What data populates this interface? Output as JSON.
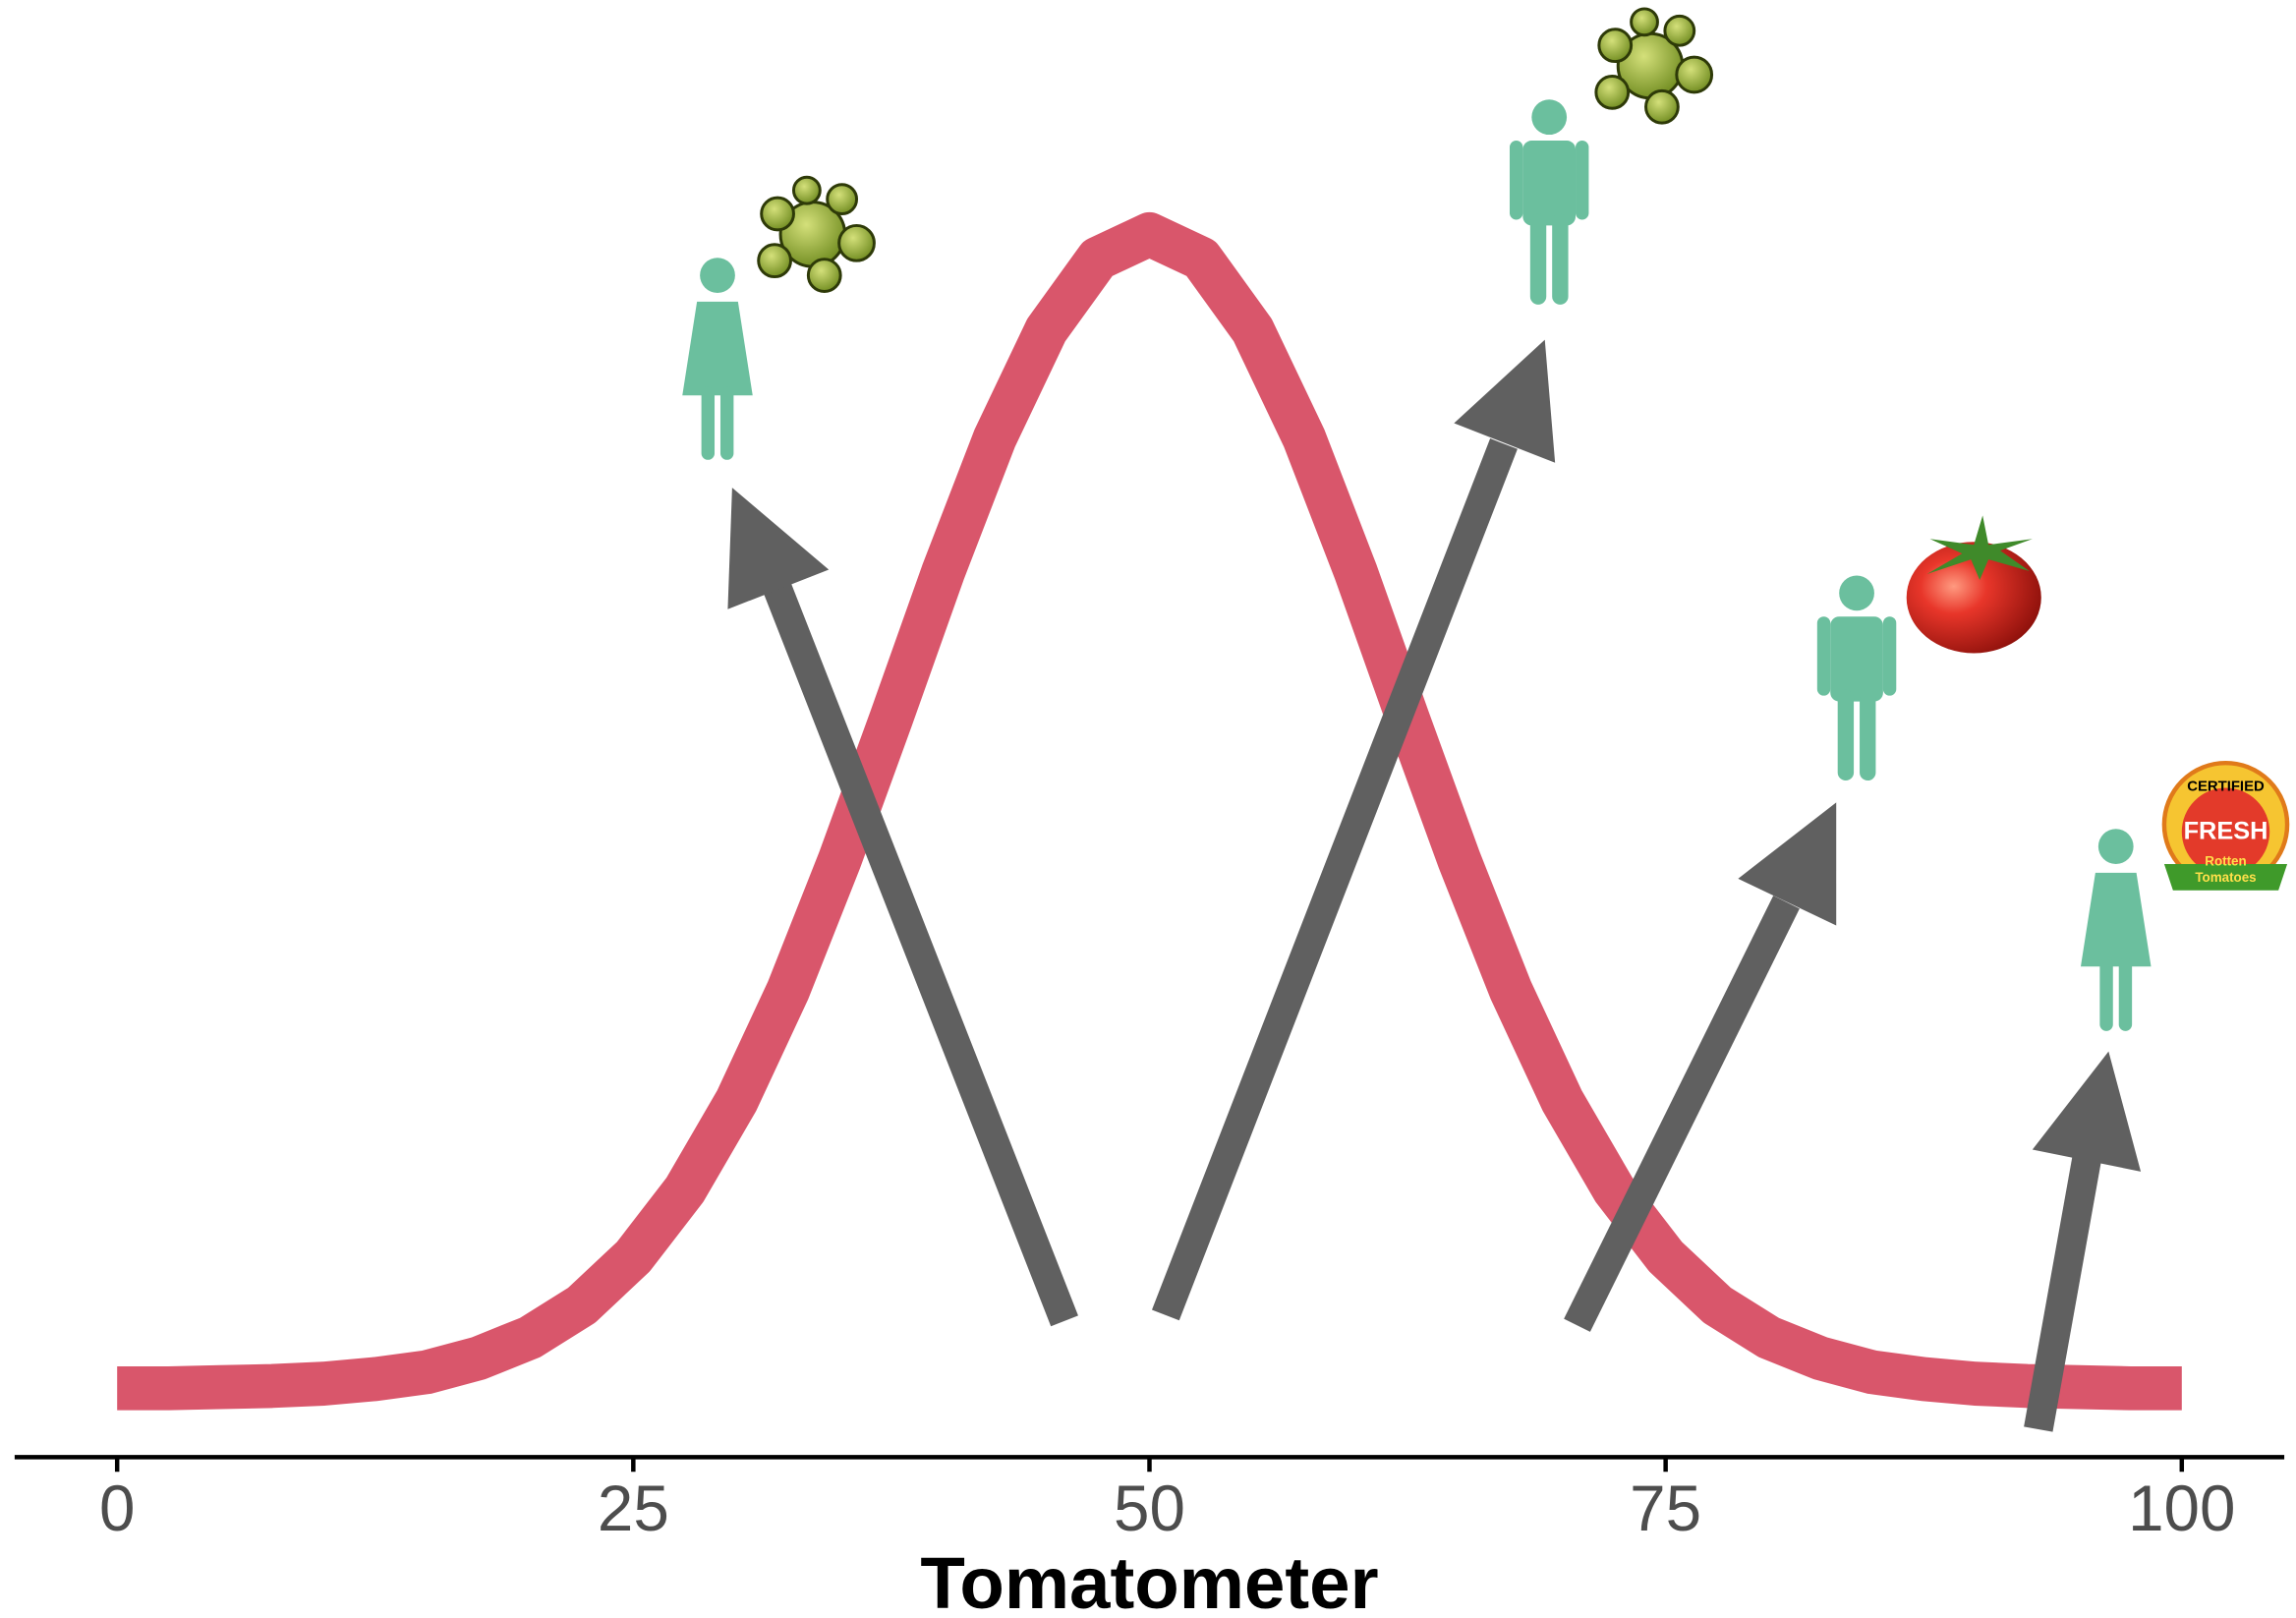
{
  "chart_data": {
    "type": "line",
    "xlabel": "Tomatometer",
    "x": [
      0,
      2.5,
      5,
      7.5,
      10,
      12.5,
      15,
      17.5,
      20,
      22.5,
      25,
      27.5,
      30,
      32.5,
      35,
      37.5,
      40,
      42.5,
      45,
      47.5,
      50,
      52.5,
      55,
      57.5,
      60,
      62.5,
      65,
      67.5,
      70,
      72.5,
      75,
      77.5,
      80,
      82.5,
      85,
      87.5,
      90,
      92.5,
      95,
      97.5,
      100
    ],
    "values": [
      0,
      0,
      0.001,
      0.002,
      0.004,
      0.008,
      0.014,
      0.026,
      0.044,
      0.072,
      0.114,
      0.172,
      0.249,
      0.345,
      0.458,
      0.581,
      0.707,
      0.823,
      0.917,
      0.979,
      1,
      0.979,
      0.917,
      0.823,
      0.707,
      0.581,
      0.458,
      0.345,
      0.249,
      0.172,
      0.114,
      0.072,
      0.044,
      0.026,
      0.014,
      0.008,
      0.004,
      0.002,
      0.001,
      0,
      0
    ],
    "color": "#d9566b",
    "xlim": [
      0,
      100
    ],
    "xticks": [
      0,
      25,
      50,
      75,
      100
    ],
    "ylim": [
      0,
      1
    ],
    "annotations": [
      "CERTIFIED",
      "FRESH",
      "Rotten",
      "Tomatoes"
    ]
  }
}
